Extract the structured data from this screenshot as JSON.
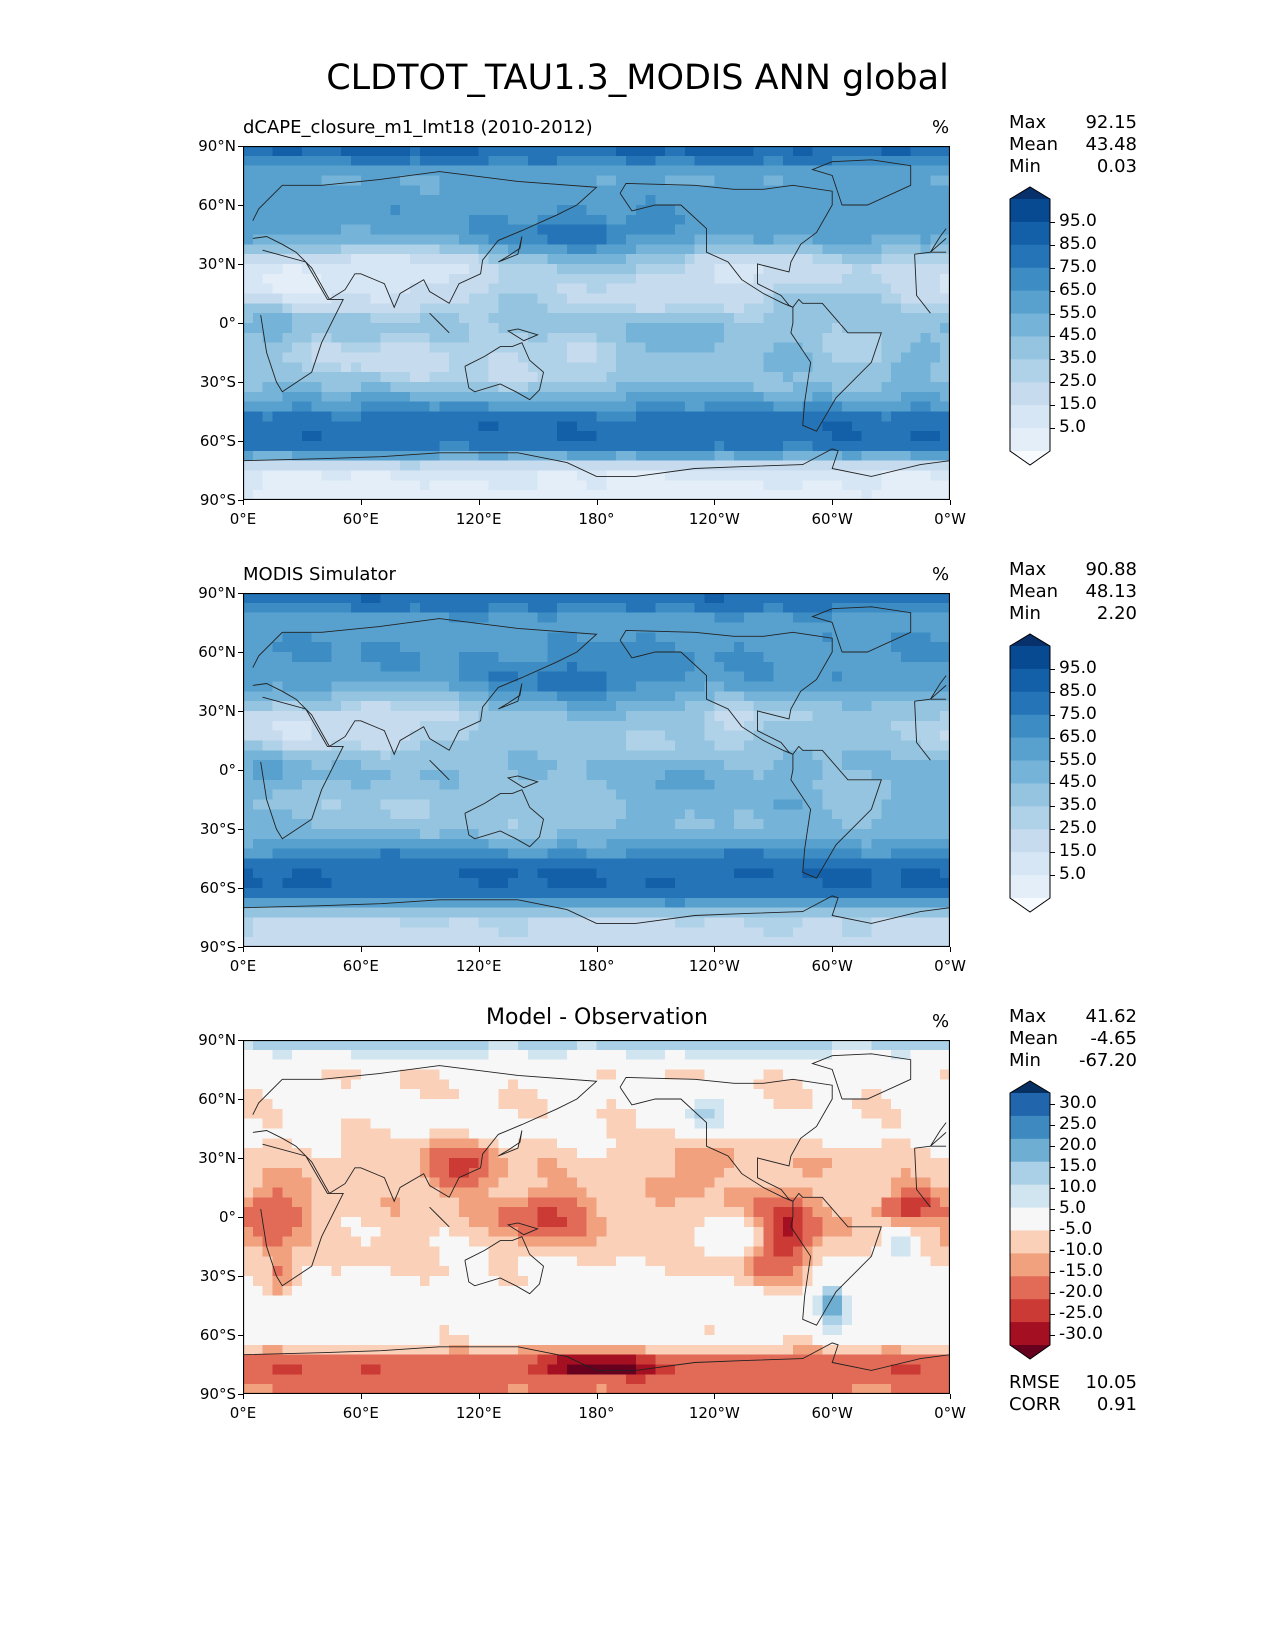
{
  "title": "CLDTOT_TAU1.3_MODIS ANN global",
  "chart_data": [
    {
      "type": "heatmap",
      "subtype": "filled-contour map",
      "title": "dCAPE_closure_m1_lmt18 (2010-2012)",
      "units": "%",
      "stats": {
        "Max": "92.15",
        "Mean": "43.48",
        "Min": "0.03"
      },
      "colormap": "Blues",
      "levels": [
        0,
        5,
        10,
        15,
        20,
        25,
        30,
        35,
        40,
        45,
        50,
        55,
        60,
        65,
        70,
        75,
        80,
        85,
        90,
        95,
        100
      ],
      "colorbar_ticks": [
        "95.0",
        "85.0",
        "75.0",
        "65.0",
        "55.0",
        "45.0",
        "35.0",
        "25.0",
        "15.0",
        "5.0"
      ],
      "x_ticks": [
        "0°E",
        "60°E",
        "120°E",
        "180°",
        "120°W",
        "60°W",
        "0°W"
      ],
      "y_ticks": [
        "90°N",
        "60°N",
        "30°N",
        "0°",
        "30°S",
        "60°S",
        "90°S"
      ],
      "xlim": [
        0,
        360
      ],
      "ylim": [
        -90,
        90
      ],
      "zonal_mean_profile": [
        {
          "lat": 90,
          "value": 85
        },
        {
          "lat": 75,
          "value": 55
        },
        {
          "lat": 60,
          "value": 62
        },
        {
          "lat": 45,
          "value": 60
        },
        {
          "lat": 30,
          "value": 30
        },
        {
          "lat": 15,
          "value": 35
        },
        {
          "lat": 0,
          "value": 40
        },
        {
          "lat": -15,
          "value": 32
        },
        {
          "lat": -30,
          "value": 40
        },
        {
          "lat": -45,
          "value": 70
        },
        {
          "lat": -55,
          "value": 80
        },
        {
          "lat": -65,
          "value": 70
        },
        {
          "lat": -75,
          "value": 12
        },
        {
          "lat": -90,
          "value": 5
        }
      ]
    },
    {
      "type": "heatmap",
      "subtype": "filled-contour map",
      "title": "MODIS Simulator",
      "units": "%",
      "stats": {
        "Max": "90.88",
        "Mean": "48.13",
        "Min": "2.20"
      },
      "colormap": "Blues",
      "levels": [
        0,
        5,
        10,
        15,
        20,
        25,
        30,
        35,
        40,
        45,
        50,
        55,
        60,
        65,
        70,
        75,
        80,
        85,
        90,
        95,
        100
      ],
      "colorbar_ticks": [
        "95.0",
        "85.0",
        "75.0",
        "65.0",
        "55.0",
        "45.0",
        "35.0",
        "25.0",
        "15.0",
        "5.0"
      ],
      "x_ticks": [
        "0°E",
        "60°E",
        "120°E",
        "180°",
        "120°W",
        "60°W",
        "0°W"
      ],
      "y_ticks": [
        "90°N",
        "60°N",
        "30°N",
        "0°",
        "30°S",
        "60°S",
        "90°S"
      ],
      "xlim": [
        0,
        360
      ],
      "ylim": [
        -90,
        90
      ],
      "zonal_mean_profile": [
        {
          "lat": 90,
          "value": 80
        },
        {
          "lat": 75,
          "value": 60
        },
        {
          "lat": 60,
          "value": 65
        },
        {
          "lat": 45,
          "value": 62
        },
        {
          "lat": 30,
          "value": 40
        },
        {
          "lat": 15,
          "value": 42
        },
        {
          "lat": 0,
          "value": 48
        },
        {
          "lat": -15,
          "value": 40
        },
        {
          "lat": -30,
          "value": 45
        },
        {
          "lat": -45,
          "value": 72
        },
        {
          "lat": -55,
          "value": 82
        },
        {
          "lat": -65,
          "value": 72
        },
        {
          "lat": -75,
          "value": 30
        },
        {
          "lat": -90,
          "value": 25
        }
      ]
    },
    {
      "type": "heatmap",
      "subtype": "filled-contour map",
      "title": "Model - Observation",
      "units": "%",
      "stats": {
        "Max": "41.62",
        "Mean": "-4.65",
        "Min": "-67.20"
      },
      "metrics": {
        "RMSE": "10.05",
        "CORR": "0.91"
      },
      "colormap": "RdBu",
      "levels": [
        -35,
        -30,
        -25,
        -20,
        -15,
        -10,
        -5,
        5,
        10,
        15,
        20,
        25,
        30,
        35
      ],
      "colorbar_ticks": [
        "30.0",
        "25.0",
        "20.0",
        "15.0",
        "10.0",
        "5.0",
        "-5.0",
        "-10.0",
        "-15.0",
        "-20.0",
        "-25.0",
        "-30.0"
      ],
      "x_ticks": [
        "0°E",
        "60°E",
        "120°E",
        "180°",
        "120°W",
        "60°W",
        "0°W"
      ],
      "y_ticks": [
        "90°N",
        "60°N",
        "30°N",
        "0°",
        "30°S",
        "60°S",
        "90°S"
      ],
      "xlim": [
        0,
        360
      ],
      "ylim": [
        -90,
        90
      ],
      "zonal_mean_profile": [
        {
          "lat": 90,
          "value": 15
        },
        {
          "lat": 75,
          "value": -4
        },
        {
          "lat": 60,
          "value": -4
        },
        {
          "lat": 45,
          "value": -3
        },
        {
          "lat": 30,
          "value": -8
        },
        {
          "lat": 15,
          "value": -7
        },
        {
          "lat": 0,
          "value": -8
        },
        {
          "lat": -15,
          "value": -6
        },
        {
          "lat": -30,
          "value": -4
        },
        {
          "lat": -45,
          "value": 2
        },
        {
          "lat": -55,
          "value": -2
        },
        {
          "lat": -65,
          "value": -3
        },
        {
          "lat": -75,
          "value": -25
        },
        {
          "lat": -90,
          "value": -15
        }
      ]
    }
  ],
  "colors": {
    "blues": [
      "#f7fbff",
      "#e3eef9",
      "#d6e6f4",
      "#c7dbef",
      "#b0d2e8",
      "#94c4df",
      "#75b4d8",
      "#58a1cf",
      "#3d8dc4",
      "#2474b7",
      "#1460a8",
      "#084a92",
      "#08306b"
    ],
    "rdbu": [
      "#67001f",
      "#a50f22",
      "#cc3a36",
      "#e26b57",
      "#f2a17f",
      "#fbd0b9",
      "#f7f7f7",
      "#d1e5f0",
      "#a9d0e6",
      "#6eaed3",
      "#3d89c0",
      "#2166ac",
      "#053061"
    ]
  }
}
